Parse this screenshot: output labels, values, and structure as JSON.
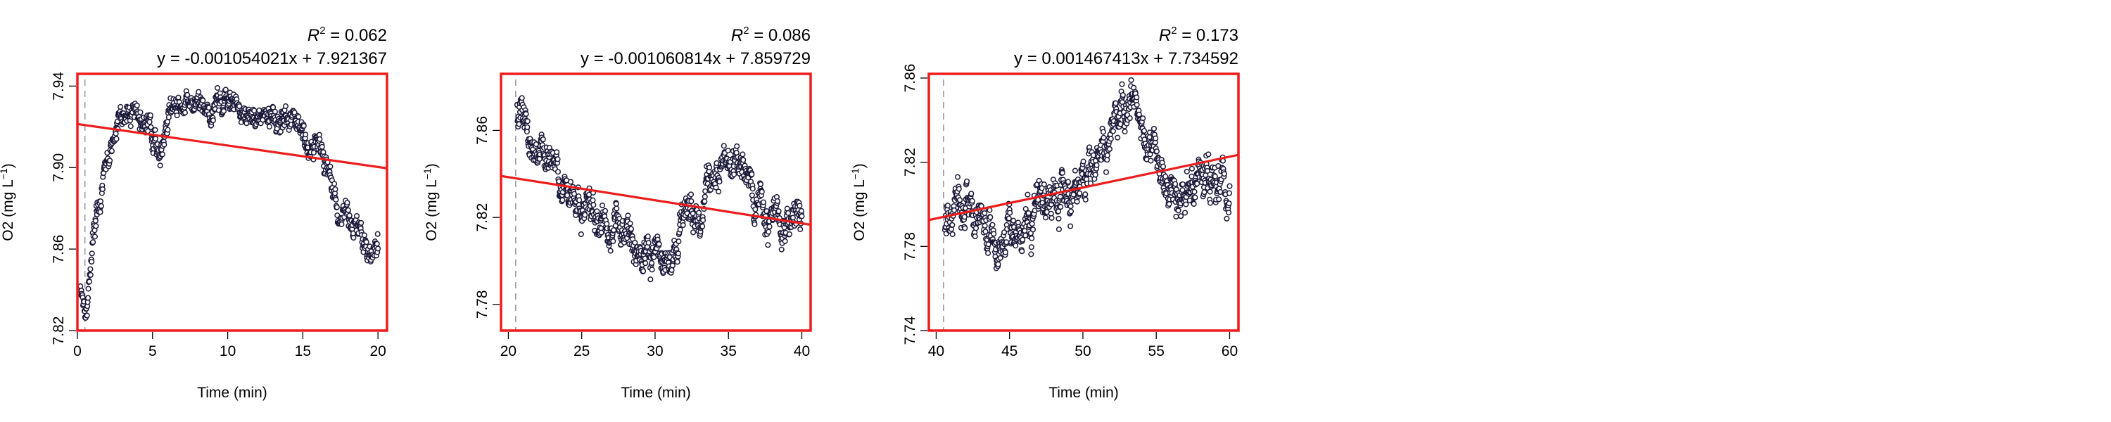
{
  "chart_data": [
    {
      "type": "scatter",
      "xlabel": "Time (min)",
      "ylabel": "O2 (mg L",
      "ylabel_sup": "−1",
      "ylabel_close": ")",
      "r2_prefix": "R",
      "r2_sup": "2",
      "r2_value": " = 0.062",
      "equation": "y = -0.001054021x + 7.921367",
      "xlim": [
        0,
        20.6
      ],
      "ylim": [
        7.82,
        7.946
      ],
      "xticks": [
        0,
        5,
        10,
        15,
        20
      ],
      "yticks": [
        7.82,
        7.86,
        7.9,
        7.94
      ],
      "xtick_labels": [
        "0",
        "5",
        "10",
        "15",
        "20"
      ],
      "ytick_labels": [
        "7.82",
        "7.86",
        "7.90",
        "7.94"
      ],
      "regression": {
        "slope": -0.001054021,
        "intercept": 7.921367
      },
      "vline_x": 0.5,
      "series_profile": [
        [
          0.2,
          7.842
        ],
        [
          0.6,
          7.835
        ],
        [
          0.9,
          7.86
        ],
        [
          1.3,
          7.88
        ],
        [
          1.8,
          7.9
        ],
        [
          2.4,
          7.915
        ],
        [
          3.0,
          7.923
        ],
        [
          4.0,
          7.928
        ],
        [
          5.0,
          7.915
        ],
        [
          5.5,
          7.905
        ],
        [
          6.2,
          7.93
        ],
        [
          7.0,
          7.928
        ],
        [
          8.0,
          7.93
        ],
        [
          9.0,
          7.932
        ],
        [
          10.0,
          7.93
        ],
        [
          11.0,
          7.928
        ],
        [
          12.0,
          7.925
        ],
        [
          13.0,
          7.922
        ],
        [
          14.0,
          7.918
        ],
        [
          15.0,
          7.915
        ],
        [
          16.0,
          7.91
        ],
        [
          16.8,
          7.898
        ],
        [
          17.5,
          7.88
        ],
        [
          18.5,
          7.875
        ],
        [
          19.5,
          7.862
        ],
        [
          20.0,
          7.86
        ]
      ],
      "noise": 0.006,
      "n_points": 900
    },
    {
      "type": "scatter",
      "xlabel": "Time (min)",
      "ylabel": "O2 (mg L",
      "ylabel_sup": "−1",
      "ylabel_close": ")",
      "r2_prefix": "R",
      "r2_sup": "2",
      "r2_value": " = 0.086",
      "equation": "y = -0.001060814x + 7.859729",
      "xlim": [
        19.5,
        40.6
      ],
      "ylim": [
        7.768,
        7.886
      ],
      "xticks": [
        20,
        25,
        30,
        35,
        40
      ],
      "yticks": [
        7.78,
        7.82,
        7.86
      ],
      "xtick_labels": [
        "20",
        "25",
        "30",
        "35",
        "40"
      ],
      "ytick_labels": [
        "7.78",
        "7.82",
        "7.86"
      ],
      "regression": {
        "slope": -0.001060814,
        "intercept": 7.859729
      },
      "vline_x": 20.5,
      "series_profile": [
        [
          20.6,
          7.87
        ],
        [
          21.5,
          7.858
        ],
        [
          22.5,
          7.845
        ],
        [
          23.5,
          7.838
        ],
        [
          25.0,
          7.825
        ],
        [
          26.5,
          7.818
        ],
        [
          28.0,
          7.815
        ],
        [
          29.0,
          7.8
        ],
        [
          30.0,
          7.805
        ],
        [
          31.0,
          7.795
        ],
        [
          32.0,
          7.82
        ],
        [
          33.0,
          7.815
        ],
        [
          33.5,
          7.838
        ],
        [
          35.0,
          7.84
        ],
        [
          36.0,
          7.838
        ],
        [
          37.0,
          7.825
        ],
        [
          38.0,
          7.82
        ],
        [
          39.0,
          7.818
        ],
        [
          40.0,
          7.822
        ]
      ],
      "noise": 0.008,
      "n_points": 900
    },
    {
      "type": "scatter",
      "xlabel": "Time (min)",
      "ylabel": "O2 (mg L",
      "ylabel_sup": "−1",
      "ylabel_close": ")",
      "r2_prefix": "R",
      "r2_sup": "2",
      "r2_value": " = 0.173",
      "equation": "y = 0.001467413x + 7.734592",
      "xlim": [
        39.5,
        60.6
      ],
      "ylim": [
        7.74,
        7.862
      ],
      "xticks": [
        40,
        45,
        50,
        55,
        60
      ],
      "yticks": [
        7.74,
        7.78,
        7.82,
        7.86
      ],
      "xtick_labels": [
        "40",
        "45",
        "50",
        "55",
        "60"
      ],
      "ytick_labels": [
        "7.74",
        "7.78",
        "7.82",
        "7.86"
      ],
      "regression": {
        "slope": 0.001467413,
        "intercept": 7.734592
      },
      "vline_x": 40.5,
      "series_profile": [
        [
          40.6,
          7.79
        ],
        [
          41.5,
          7.795
        ],
        [
          43.0,
          7.8
        ],
        [
          44.0,
          7.785
        ],
        [
          45.0,
          7.79
        ],
        [
          46.0,
          7.78
        ],
        [
          47.0,
          7.8
        ],
        [
          48.0,
          7.805
        ],
        [
          49.0,
          7.81
        ],
        [
          50.0,
          7.815
        ],
        [
          51.0,
          7.825
        ],
        [
          52.0,
          7.835
        ],
        [
          53.0,
          7.84
        ],
        [
          54.0,
          7.838
        ],
        [
          55.0,
          7.83
        ],
        [
          56.0,
          7.805
        ],
        [
          57.0,
          7.805
        ],
        [
          58.0,
          7.81
        ],
        [
          59.0,
          7.808
        ],
        [
          60.0,
          7.812
        ]
      ],
      "noise": 0.01,
      "n_points": 900
    }
  ]
}
